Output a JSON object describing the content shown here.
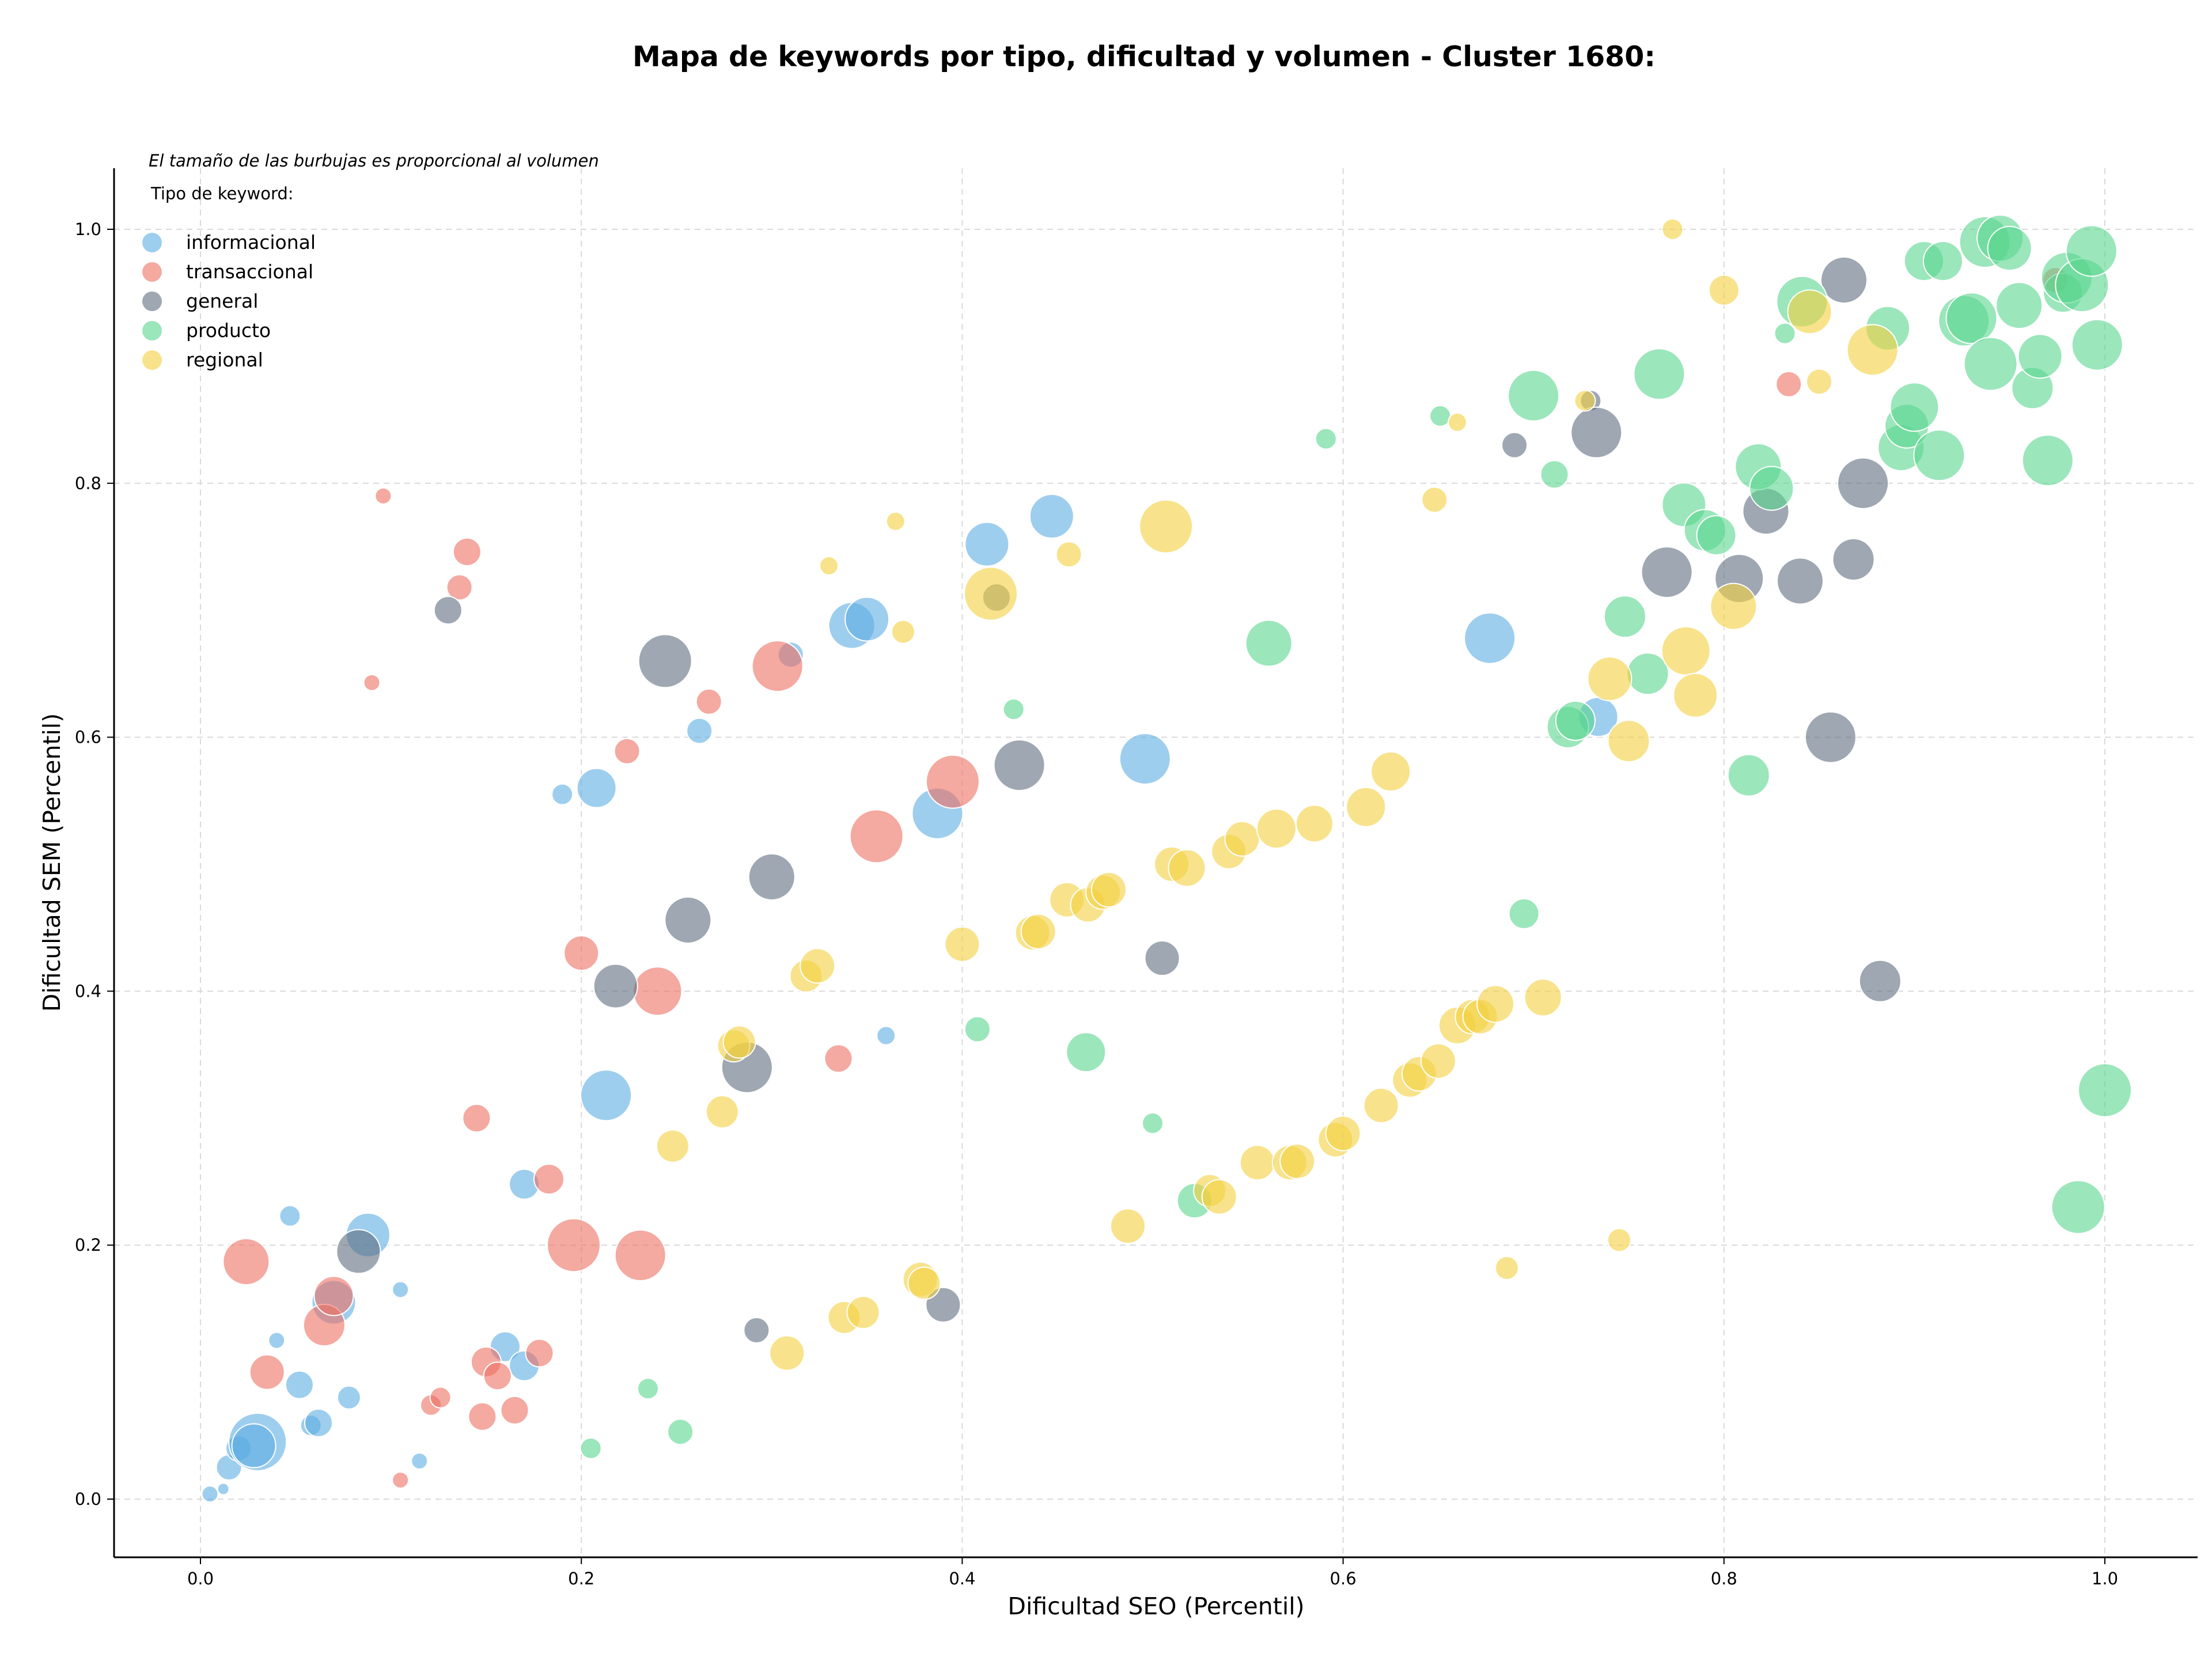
{
  "chart_data": {
    "type": "scatter",
    "title": "Mapa de keywords por tipo, dificultad y volumen - Cluster 1680:",
    "xlabel": "Dificultad SEO (Percentil)",
    "ylabel": "Dificultad SEM (Percentil)",
    "note": "El tamaño de las burbujas es proporcional al volumen",
    "legend_title": "Tipo de keyword:",
    "legend_position": "top-left",
    "xlim": [
      -0.045,
      1.05
    ],
    "ylim": [
      -0.045,
      1.05
    ],
    "x_ticks": [
      {
        "value": 0.0,
        "label": "0.0"
      },
      {
        "value": 0.2,
        "label": "0.2"
      },
      {
        "value": 0.4,
        "label": "0.4"
      },
      {
        "value": 0.6,
        "label": "0.6"
      },
      {
        "value": 0.8,
        "label": "0.8"
      },
      {
        "value": 1.0,
        "label": "1.0"
      }
    ],
    "y_ticks": [
      {
        "value": 0.0,
        "label": "0.0"
      },
      {
        "value": 0.2,
        "label": "0.2"
      },
      {
        "value": 0.4,
        "label": "0.4"
      },
      {
        "value": 0.6,
        "label": "0.6"
      },
      {
        "value": 0.8,
        "label": "0.8"
      },
      {
        "value": 1.0,
        "label": "1.0"
      }
    ],
    "grid": true,
    "series": [
      {
        "name": "informacional",
        "color": "#5dade2",
        "points": [
          [
            0.005,
            0.004,
            14
          ],
          [
            0.012,
            0.008,
            10
          ],
          [
            0.015,
            0.025,
            22
          ],
          [
            0.02,
            0.04,
            22
          ],
          [
            0.03,
            0.045,
            50
          ],
          [
            0.028,
            0.042,
            38
          ],
          [
            0.04,
            0.125,
            14
          ],
          [
            0.047,
            0.223,
            18
          ],
          [
            0.052,
            0.09,
            24
          ],
          [
            0.058,
            0.058,
            18
          ],
          [
            0.062,
            0.06,
            24
          ],
          [
            0.078,
            0.08,
            20
          ],
          [
            0.088,
            0.208,
            38
          ],
          [
            0.07,
            0.155,
            38
          ],
          [
            0.105,
            0.165,
            14
          ],
          [
            0.115,
            0.03,
            14
          ],
          [
            0.16,
            0.12,
            26
          ],
          [
            0.17,
            0.105,
            26
          ],
          [
            0.17,
            0.248,
            26
          ],
          [
            0.19,
            0.555,
            18
          ],
          [
            0.208,
            0.56,
            34
          ],
          [
            0.213,
            0.318,
            44
          ],
          [
            0.262,
            0.605,
            22
          ],
          [
            0.31,
            0.665,
            22
          ],
          [
            0.342,
            0.688,
            40
          ],
          [
            0.35,
            0.693,
            38
          ],
          [
            0.36,
            0.365,
            16
          ],
          [
            0.387,
            0.54,
            44
          ],
          [
            0.413,
            0.752,
            38
          ],
          [
            0.447,
            0.774,
            38
          ],
          [
            0.496,
            0.583,
            44
          ],
          [
            0.677,
            0.678,
            44
          ],
          [
            0.734,
            0.616,
            34
          ]
        ]
      },
      {
        "name": "transaccional",
        "color": "#ec7063",
        "points": [
          [
            0.024,
            0.187,
            40
          ],
          [
            0.035,
            0.1,
            30
          ],
          [
            0.065,
            0.137,
            36
          ],
          [
            0.07,
            0.16,
            34
          ],
          [
            0.09,
            0.643,
            14
          ],
          [
            0.096,
            0.79,
            14
          ],
          [
            0.105,
            0.015,
            14
          ],
          [
            0.121,
            0.074,
            18
          ],
          [
            0.126,
            0.08,
            18
          ],
          [
            0.136,
            0.718,
            22
          ],
          [
            0.14,
            0.746,
            24
          ],
          [
            0.145,
            0.3,
            24
          ],
          [
            0.148,
            0.065,
            24
          ],
          [
            0.15,
            0.108,
            26
          ],
          [
            0.156,
            0.097,
            24
          ],
          [
            0.165,
            0.07,
            24
          ],
          [
            0.178,
            0.115,
            24
          ],
          [
            0.183,
            0.252,
            26
          ],
          [
            0.196,
            0.2,
            46
          ],
          [
            0.2,
            0.43,
            30
          ],
          [
            0.224,
            0.589,
            22
          ],
          [
            0.231,
            0.192,
            44
          ],
          [
            0.24,
            0.4,
            42
          ],
          [
            0.267,
            0.628,
            22
          ],
          [
            0.303,
            0.656,
            44
          ],
          [
            0.335,
            0.347,
            24
          ],
          [
            0.355,
            0.522,
            46
          ],
          [
            0.395,
            0.565,
            46
          ],
          [
            0.834,
            0.878,
            22
          ],
          [
            0.974,
            0.96,
            22
          ]
        ]
      },
      {
        "name": "general",
        "color": "#5d6d7e",
        "points": [
          [
            0.083,
            0.195,
            38
          ],
          [
            0.13,
            0.7,
            24
          ],
          [
            0.218,
            0.404,
            38
          ],
          [
            0.244,
            0.66,
            46
          ],
          [
            0.256,
            0.456,
            40
          ],
          [
            0.287,
            0.34,
            44
          ],
          [
            0.292,
            0.133,
            22
          ],
          [
            0.3,
            0.49,
            40
          ],
          [
            0.39,
            0.153,
            30
          ],
          [
            0.418,
            0.71,
            24
          ],
          [
            0.43,
            0.578,
            44
          ],
          [
            0.505,
            0.426,
            30
          ],
          [
            0.69,
            0.83,
            22
          ],
          [
            0.73,
            0.865,
            18
          ],
          [
            0.733,
            0.84,
            44
          ],
          [
            0.77,
            0.73,
            44
          ],
          [
            0.808,
            0.725,
            42
          ],
          [
            0.822,
            0.778,
            40
          ],
          [
            0.84,
            0.723,
            40
          ],
          [
            0.856,
            0.6,
            44
          ],
          [
            0.863,
            0.96,
            40
          ],
          [
            0.868,
            0.74,
            36
          ],
          [
            0.873,
            0.8,
            44
          ],
          [
            0.882,
            0.408,
            36
          ]
        ]
      },
      {
        "name": "producto",
        "color": "#58d68d",
        "points": [
          [
            0.205,
            0.04,
            18
          ],
          [
            0.235,
            0.087,
            18
          ],
          [
            0.252,
            0.053,
            22
          ],
          [
            0.408,
            0.37,
            22
          ],
          [
            0.427,
            0.622,
            18
          ],
          [
            0.465,
            0.352,
            34
          ],
          [
            0.5,
            0.296,
            18
          ],
          [
            0.522,
            0.235,
            30
          ],
          [
            0.561,
            0.674,
            40
          ],
          [
            0.591,
            0.835,
            18
          ],
          [
            0.651,
            0.853,
            18
          ],
          [
            0.695,
            0.461,
            26
          ],
          [
            0.7,
            0.869,
            44
          ],
          [
            0.711,
            0.807,
            24
          ],
          [
            0.718,
            0.608,
            36
          ],
          [
            0.722,
            0.613,
            34
          ],
          [
            0.748,
            0.695,
            36
          ],
          [
            0.76,
            0.65,
            36
          ],
          [
            0.766,
            0.886,
            44
          ],
          [
            0.779,
            0.783,
            38
          ],
          [
            0.79,
            0.763,
            36
          ],
          [
            0.796,
            0.759,
            34
          ],
          [
            0.813,
            0.57,
            36
          ],
          [
            0.818,
            0.813,
            40
          ],
          [
            0.825,
            0.796,
            38
          ],
          [
            0.832,
            0.918,
            18
          ],
          [
            0.841,
            0.943,
            44
          ],
          [
            0.886,
            0.922,
            38
          ],
          [
            0.893,
            0.828,
            40
          ],
          [
            0.896,
            0.845,
            38
          ],
          [
            0.9,
            0.86,
            42
          ],
          [
            0.905,
            0.975,
            34
          ],
          [
            0.913,
            0.822,
            44
          ],
          [
            0.915,
            0.975,
            34
          ],
          [
            0.926,
            0.928,
            44
          ],
          [
            0.93,
            0.93,
            44
          ],
          [
            0.937,
            0.99,
            44
          ],
          [
            0.94,
            0.894,
            46
          ],
          [
            0.945,
            0.993,
            40
          ],
          [
            0.95,
            0.985,
            38
          ],
          [
            0.955,
            0.94,
            40
          ],
          [
            0.962,
            0.875,
            36
          ],
          [
            0.966,
            0.9,
            38
          ],
          [
            0.97,
            0.818,
            44
          ],
          [
            0.978,
            0.95,
            34
          ],
          [
            0.98,
            0.962,
            44
          ],
          [
            0.988,
            0.956,
            46
          ],
          [
            0.993,
            0.983,
            44
          ],
          [
            0.996,
            0.909,
            44
          ],
          [
            0.986,
            0.23,
            46
          ],
          [
            1.0,
            0.322,
            46
          ]
        ]
      },
      {
        "name": "regional",
        "color": "#f4d03f",
        "points": [
          [
            0.248,
            0.278,
            28
          ],
          [
            0.274,
            0.305,
            28
          ],
          [
            0.28,
            0.357,
            28
          ],
          [
            0.283,
            0.36,
            28
          ],
          [
            0.308,
            0.115,
            30
          ],
          [
            0.318,
            0.412,
            28
          ],
          [
            0.324,
            0.42,
            30
          ],
          [
            0.33,
            0.735,
            16
          ],
          [
            0.338,
            0.143,
            28
          ],
          [
            0.348,
            0.147,
            28
          ],
          [
            0.365,
            0.77,
            16
          ],
          [
            0.369,
            0.683,
            20
          ],
          [
            0.378,
            0.173,
            30
          ],
          [
            0.38,
            0.17,
            28
          ],
          [
            0.4,
            0.437,
            30
          ],
          [
            0.415,
            0.713,
            46
          ],
          [
            0.437,
            0.446,
            30
          ],
          [
            0.44,
            0.447,
            30
          ],
          [
            0.455,
            0.472,
            30
          ],
          [
            0.456,
            0.744,
            22
          ],
          [
            0.466,
            0.468,
            30
          ],
          [
            0.474,
            0.478,
            30
          ],
          [
            0.477,
            0.48,
            30
          ],
          [
            0.487,
            0.215,
            30
          ],
          [
            0.507,
            0.766,
            46
          ],
          [
            0.51,
            0.5,
            30
          ],
          [
            0.518,
            0.497,
            32
          ],
          [
            0.53,
            0.243,
            28
          ],
          [
            0.535,
            0.238,
            30
          ],
          [
            0.54,
            0.51,
            30
          ],
          [
            0.547,
            0.52,
            30
          ],
          [
            0.555,
            0.265,
            30
          ],
          [
            0.565,
            0.528,
            34
          ],
          [
            0.572,
            0.265,
            30
          ],
          [
            0.576,
            0.266,
            30
          ],
          [
            0.585,
            0.532,
            32
          ],
          [
            0.596,
            0.283,
            30
          ],
          [
            0.6,
            0.288,
            30
          ],
          [
            0.612,
            0.545,
            34
          ],
          [
            0.62,
            0.31,
            30
          ],
          [
            0.625,
            0.573,
            34
          ],
          [
            0.635,
            0.33,
            30
          ],
          [
            0.64,
            0.335,
            30
          ],
          [
            0.648,
            0.787,
            22
          ],
          [
            0.65,
            0.345,
            30
          ],
          [
            0.66,
            0.373,
            32
          ],
          [
            0.66,
            0.848,
            16
          ],
          [
            0.668,
            0.38,
            30
          ],
          [
            0.672,
            0.38,
            30
          ],
          [
            0.68,
            0.39,
            32
          ],
          [
            0.686,
            0.182,
            20
          ],
          [
            0.705,
            0.395,
            32
          ],
          [
            0.727,
            0.865,
            18
          ],
          [
            0.74,
            0.646,
            38
          ],
          [
            0.745,
            0.204,
            20
          ],
          [
            0.75,
            0.597,
            36
          ],
          [
            0.773,
            1.0,
            18
          ],
          [
            0.78,
            0.668,
            42
          ],
          [
            0.785,
            0.633,
            38
          ],
          [
            0.8,
            0.952,
            26
          ],
          [
            0.805,
            0.703,
            40
          ],
          [
            0.845,
            0.935,
            38
          ],
          [
            0.85,
            0.88,
            22
          ],
          [
            0.878,
            0.905,
            44
          ]
        ]
      }
    ]
  }
}
